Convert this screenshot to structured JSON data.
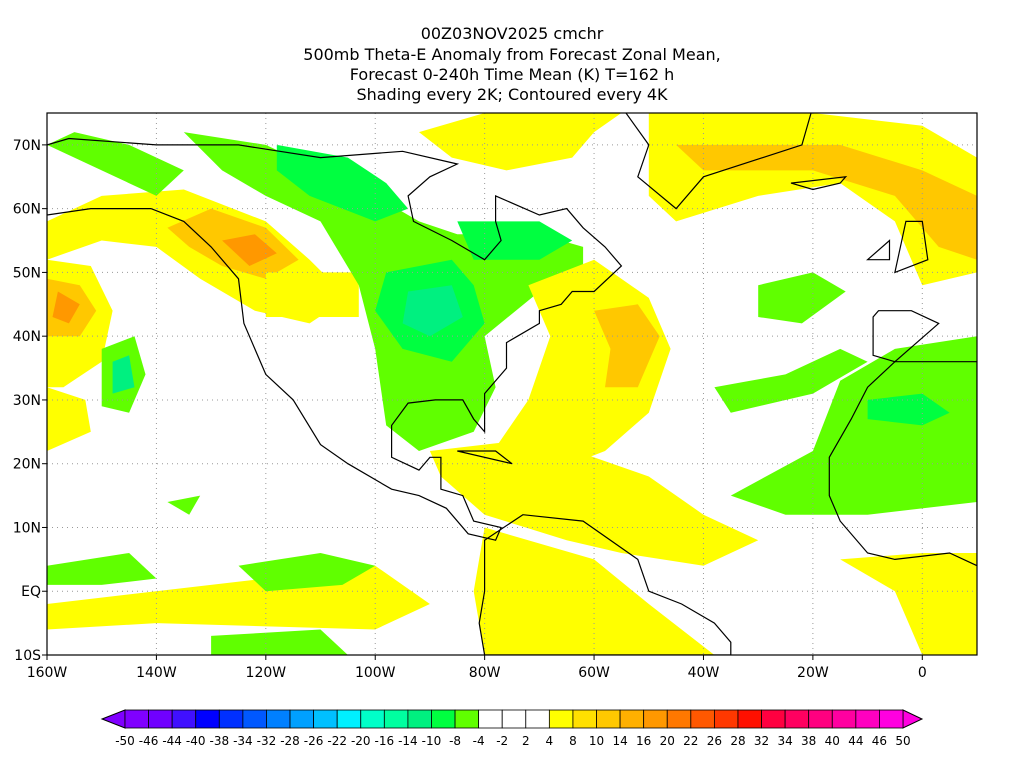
{
  "title": {
    "line1": "00Z03NOV2025 cmchr",
    "line2": "500mb Theta-E Anomaly from Forecast Zonal Mean,",
    "line3": "Forecast 0-240h Time Mean (K) T=162 h",
    "line4": "Shading every 2K; Contoured every 4K"
  },
  "map": {
    "lon_range": [
      -160,
      10
    ],
    "lat_range": [
      -10,
      75
    ],
    "lon_ticks": [
      {
        "v": -160,
        "label": "160W"
      },
      {
        "v": -140,
        "label": "140W"
      },
      {
        "v": -120,
        "label": "120W"
      },
      {
        "v": -100,
        "label": "100W"
      },
      {
        "v": -80,
        "label": "80W"
      },
      {
        "v": -60,
        "label": "60W"
      },
      {
        "v": -40,
        "label": "40W"
      },
      {
        "v": -20,
        "label": "20W"
      },
      {
        "v": 0,
        "label": "0"
      }
    ],
    "lat_ticks": [
      {
        "v": 70,
        "label": "70N"
      },
      {
        "v": 60,
        "label": "60N"
      },
      {
        "v": 50,
        "label": "50N"
      },
      {
        "v": 40,
        "label": "40N"
      },
      {
        "v": 30,
        "label": "30N"
      },
      {
        "v": 20,
        "label": "20N"
      },
      {
        "v": 10,
        "label": "10N"
      },
      {
        "v": 0,
        "label": "EQ"
      },
      {
        "v": -10,
        "label": "10S"
      }
    ]
  },
  "colorbar": {
    "labels": [
      "-50",
      "-46",
      "-44",
      "-40",
      "-38",
      "-34",
      "-32",
      "-28",
      "-26",
      "-22",
      "-20",
      "-16",
      "-14",
      "-10",
      "-8",
      "-4",
      "-2",
      "2",
      "4",
      "8",
      "10",
      "14",
      "16",
      "20",
      "22",
      "26",
      "28",
      "32",
      "34",
      "38",
      "40",
      "44",
      "46",
      "50"
    ],
    "colors": [
      "#8000ff",
      "#7000ff",
      "#4010ff",
      "#0000ff",
      "#0030ff",
      "#0058ff",
      "#0080ff",
      "#00a0ff",
      "#00c0ff",
      "#00f0ff",
      "#00ffc8",
      "#00ffa0",
      "#00f080",
      "#00ff40",
      "#60ff00",
      "#ffffff",
      "#ffffff",
      "#ffffff",
      "#ffff00",
      "#ffe000",
      "#ffc800",
      "#ffb000",
      "#ff9800",
      "#ff7800",
      "#ff5800",
      "#ff3800",
      "#ff1000",
      "#ff0040",
      "#ff0060",
      "#ff0080",
      "#ff00a0",
      "#ff00c0",
      "#ff00e0"
    ]
  }
}
